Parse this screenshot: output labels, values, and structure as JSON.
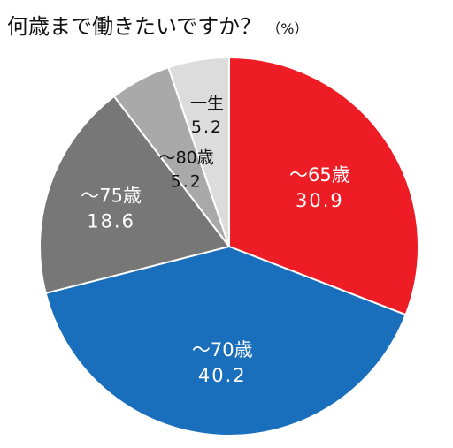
{
  "chart_data": {
    "type": "pie",
    "title": "何歳まで働きたいですか？",
    "unit": "（%）",
    "slices": [
      {
        "label": "～65歳",
        "value": 30.9,
        "value_text": "30.9",
        "color": "#ee1c25",
        "text_color": "#ffffff"
      },
      {
        "label": "～70歳",
        "value": 40.2,
        "value_text": "40.2",
        "color": "#1a6fbd",
        "text_color": "#ffffff"
      },
      {
        "label": "～75歳",
        "value": 18.6,
        "value_text": "18.6",
        "color": "#777777",
        "text_color": "#ffffff"
      },
      {
        "label": "～80歳",
        "value": 5.2,
        "value_text": "5.2",
        "color": "#a9a9a9",
        "text_color": "#111111"
      },
      {
        "label": "一生",
        "value": 5.2,
        "value_text": "5.2",
        "color": "#dcdcdc",
        "text_color": "#111111"
      }
    ],
    "start": "12 o'clock",
    "direction": "clockwise",
    "slice_border_color": "#ffffff"
  }
}
